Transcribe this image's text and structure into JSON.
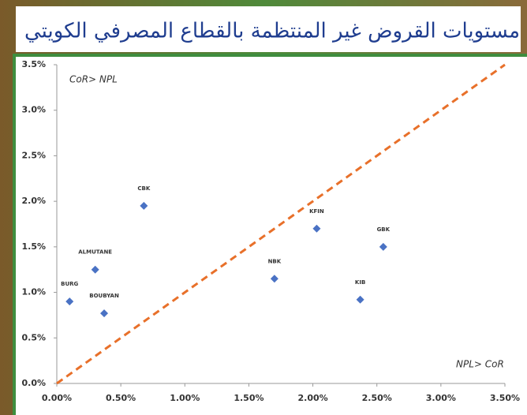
{
  "chart_data": {
    "type": "scatter",
    "title": "مستويات القروض غير المنتظمة بالقطاع المصرفي الكويتي",
    "annotations": [
      "CoR> NPL",
      "NPL> CoR"
    ],
    "x": [
      0.1,
      0.3,
      0.37,
      0.68,
      1.7,
      2.03,
      2.37,
      2.55
    ],
    "values": [
      0.9,
      1.25,
      0.77,
      1.95,
      1.15,
      1.7,
      0.92,
      1.5
    ],
    "point_labels": [
      "BURG",
      "ALMUTANE",
      "BOUBYAN",
      "CBK",
      "NBK",
      "KFIN",
      "KIB",
      "GBK"
    ],
    "color": "#4a72c4",
    "diagonal_color": "#e8702a",
    "xlim": [
      0,
      3.5
    ],
    "ylim": [
      0,
      3.5
    ],
    "xticks": [
      {
        "value": 0,
        "label": "0.00%"
      },
      {
        "value": 0.5,
        "label": "0.50%"
      },
      {
        "value": 1,
        "label": "1.00%"
      },
      {
        "value": 1.5,
        "label": "1.50%"
      },
      {
        "value": 2,
        "label": "2.00%"
      },
      {
        "value": 2.5,
        "label": "2.50%"
      },
      {
        "value": 3,
        "label": "3.00%"
      },
      {
        "value": 3.5,
        "label": "3.50%"
      }
    ],
    "yticks": [
      {
        "value": 0,
        "label": "0.0%"
      },
      {
        "value": 0.5,
        "label": "0.5%"
      },
      {
        "value": 1,
        "label": "1.0%"
      },
      {
        "value": 1.5,
        "label": "1.5%"
      },
      {
        "value": 2,
        "label": "2.0%"
      },
      {
        "value": 2.5,
        "label": "2.5%"
      },
      {
        "value": 3,
        "label": "3.0%"
      },
      {
        "value": 3.5,
        "label": "3.5%"
      }
    ]
  }
}
